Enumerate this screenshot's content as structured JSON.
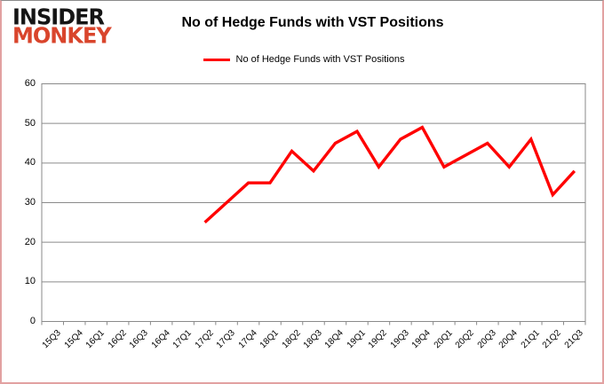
{
  "logo": {
    "line1": "INSIDER",
    "line2": "MONKEY"
  },
  "header": {
    "title": "No of Hedge Funds with VST Positions"
  },
  "legend": {
    "label": "No of Hedge Funds with VST Positions"
  },
  "colors": {
    "line": "#FF0000",
    "grid": "#8a8a8a",
    "frame": "#e2a1a1",
    "logo_black": "#151515",
    "logo_red": "#d9452c"
  },
  "chart_data": {
    "type": "line",
    "title": "No of Hedge Funds with VST Positions",
    "categories": [
      "15Q3",
      "15Q4",
      "16Q1",
      "16Q2",
      "16Q3",
      "16Q4",
      "17Q1",
      "17Q2",
      "17Q3",
      "17Q4",
      "18Q1",
      "18Q2",
      "18Q3",
      "18Q4",
      "19Q1",
      "19Q2",
      "19Q3",
      "19Q4",
      "20Q1",
      "20Q2",
      "20Q3",
      "20Q4",
      "21Q1",
      "21Q2",
      "21Q3"
    ],
    "series": [
      {
        "name": "No of Hedge Funds with VST Positions",
        "color": "#FF0000",
        "values": [
          null,
          null,
          null,
          null,
          null,
          null,
          null,
          25,
          30,
          35,
          35,
          43,
          38,
          45,
          48,
          39,
          46,
          49,
          39,
          42,
          45,
          39,
          46,
          32,
          38
        ]
      }
    ],
    "ylim": [
      0,
      60
    ],
    "yticks": [
      0,
      10,
      20,
      30,
      40,
      50,
      60
    ],
    "grid": true,
    "legend_position": "top-center",
    "x_label_rotation": -45
  }
}
